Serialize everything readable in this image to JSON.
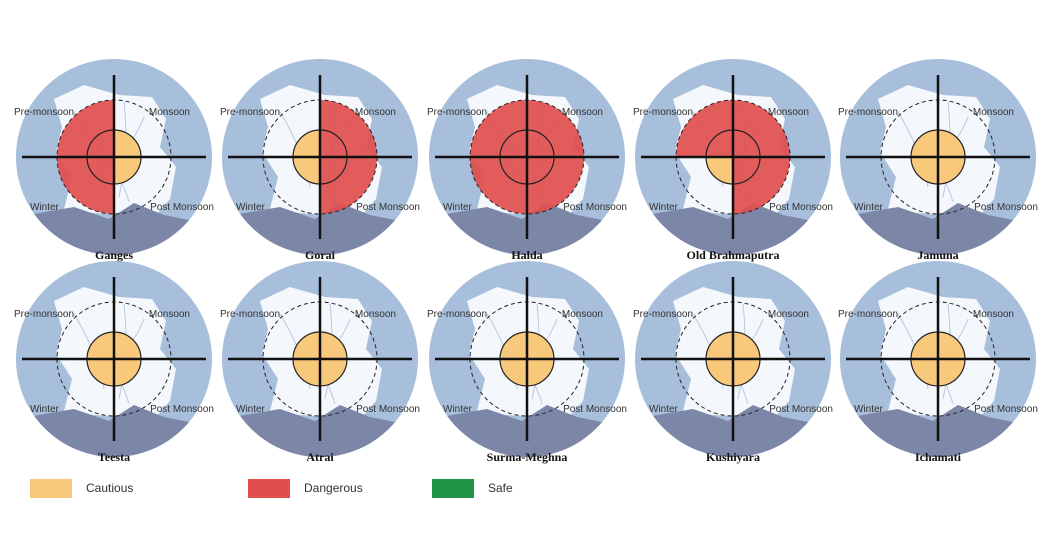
{
  "colors": {
    "cautious": "#F9C97B",
    "dangerous": "#E04E4E",
    "safe": "#1E9446",
    "ring": "#A7BFDB",
    "land": "#F4F7FB",
    "bay": "#7C87A8"
  },
  "quadrant_labels": {
    "pre_monsoon": "Pre-monsoon",
    "monsoon": "Monsoon",
    "winter": "Winter",
    "post_monsoon": "Post Monsoon"
  },
  "legend": [
    {
      "key": "cautious",
      "label": "Cautious"
    },
    {
      "key": "dangerous",
      "label": "Dangerous"
    },
    {
      "key": "safe",
      "label": "Safe"
    }
  ],
  "rivers": [
    {
      "name": "Ganges",
      "pre_monsoon": "dangerous",
      "monsoon": "cautious",
      "post_monsoon": "cautious",
      "winter": "dangerous"
    },
    {
      "name": "Gorai",
      "pre_monsoon": "cautious",
      "monsoon": "dangerous",
      "post_monsoon": "dangerous",
      "winter": "cautious"
    },
    {
      "name": "Halda",
      "pre_monsoon": "dangerous",
      "monsoon": "dangerous",
      "post_monsoon": "dangerous",
      "winter": "dangerous"
    },
    {
      "name": "Old Brahmaputra",
      "pre_monsoon": "dangerous",
      "monsoon": "dangerous",
      "post_monsoon": "dangerous",
      "winter": "cautious"
    },
    {
      "name": "Jamuna",
      "pre_monsoon": "cautious",
      "monsoon": "cautious",
      "post_monsoon": "cautious",
      "winter": "cautious"
    },
    {
      "name": "Teesta",
      "pre_monsoon": "cautious",
      "monsoon": "cautious",
      "post_monsoon": "cautious",
      "winter": "cautious"
    },
    {
      "name": "Atrai",
      "pre_monsoon": "cautious",
      "monsoon": "cautious",
      "post_monsoon": "cautious",
      "winter": "cautious"
    },
    {
      "name": "Surma-Meghna",
      "pre_monsoon": "cautious",
      "monsoon": "cautious",
      "post_monsoon": "cautious",
      "winter": "cautious"
    },
    {
      "name": "Kushiyara",
      "pre_monsoon": "cautious",
      "monsoon": "cautious",
      "post_monsoon": "cautious",
      "winter": "cautious"
    },
    {
      "name": "Ichamati",
      "pre_monsoon": "cautious",
      "monsoon": "cautious",
      "post_monsoon": "cautious",
      "winter": "cautious"
    }
  ]
}
